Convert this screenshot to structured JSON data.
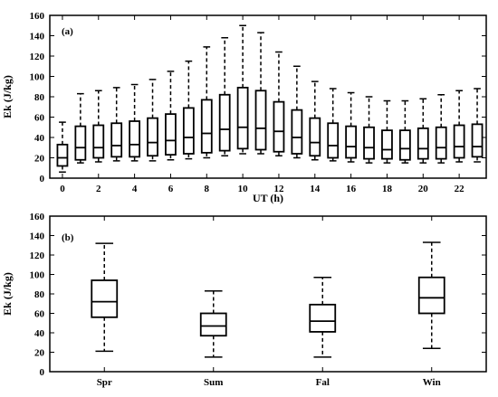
{
  "chart_data": [
    {
      "type": "boxplot",
      "panel_label": "(a)",
      "xlabel": "UT (h)",
      "ylabel": "Ek (J/kg)",
      "ylim": [
        0,
        160
      ],
      "yticks": [
        0,
        20,
        40,
        60,
        80,
        100,
        120,
        140,
        160
      ],
      "xlim": [
        -0.7,
        23.5
      ],
      "xticks": [
        0,
        2,
        4,
        6,
        8,
        10,
        12,
        14,
        16,
        18,
        20,
        22
      ],
      "x": [
        0,
        1,
        2,
        3,
        4,
        5,
        6,
        7,
        8,
        9,
        10,
        11,
        12,
        13,
        14,
        15,
        16,
        17,
        18,
        19,
        20,
        21,
        22,
        23
      ],
      "min": [
        6,
        15,
        16,
        17,
        17,
        17,
        18,
        19,
        20,
        22,
        24,
        24,
        22,
        20,
        18,
        17,
        16,
        15,
        15,
        15,
        15,
        15,
        16,
        16
      ],
      "q1": [
        12,
        18,
        20,
        21,
        21,
        22,
        23,
        24,
        25,
        27,
        29,
        28,
        26,
        24,
        22,
        20,
        20,
        19,
        19,
        18,
        19,
        19,
        20,
        21
      ],
      "median": [
        20,
        30,
        30,
        32,
        33,
        35,
        37,
        40,
        44,
        48,
        50,
        49,
        46,
        40,
        35,
        32,
        31,
        30,
        28,
        29,
        29,
        30,
        31,
        31
      ],
      "q3": [
        33,
        51,
        52,
        54,
        56,
        59,
        63,
        69,
        77,
        82,
        89,
        86,
        75,
        67,
        59,
        54,
        51,
        50,
        47,
        47,
        49,
        50,
        52,
        53
      ],
      "max": [
        55,
        83,
        86,
        89,
        92,
        97,
        105,
        115,
        129,
        138,
        150,
        143,
        124,
        110,
        95,
        88,
        84,
        80,
        76,
        76,
        78,
        82,
        86,
        88
      ]
    },
    {
      "type": "boxplot",
      "panel_label": "(b)",
      "xlabel": "",
      "ylabel": "Ek (J/kg)",
      "ylim": [
        0,
        160
      ],
      "yticks": [
        0,
        20,
        40,
        60,
        80,
        100,
        120,
        140,
        160
      ],
      "categories": [
        "Spr",
        "Sum",
        "Fal",
        "Win"
      ],
      "min": [
        21,
        15,
        15,
        24
      ],
      "q1": [
        56,
        37,
        41,
        60
      ],
      "median": [
        72,
        47,
        52,
        76
      ],
      "q3": [
        94,
        60,
        69,
        97
      ],
      "max": [
        132,
        83,
        97,
        133
      ]
    }
  ]
}
